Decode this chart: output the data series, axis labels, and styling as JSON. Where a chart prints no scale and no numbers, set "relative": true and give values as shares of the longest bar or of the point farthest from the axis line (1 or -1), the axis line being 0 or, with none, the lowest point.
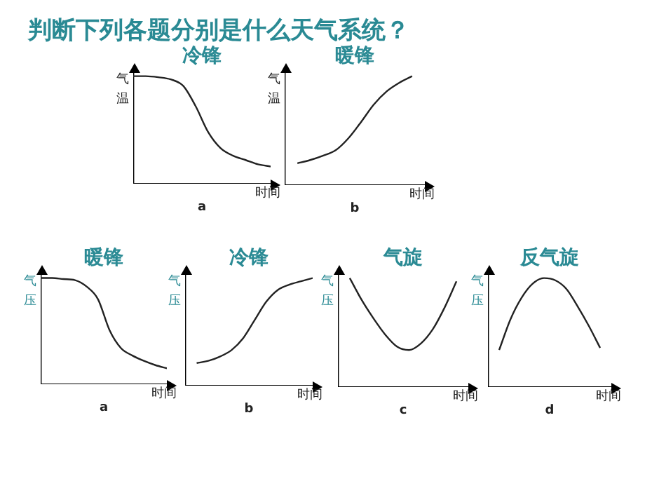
{
  "chart_data": [
    {
      "type": "other",
      "title": "判断下列各题分别是什么天气系统？"
    },
    {
      "type": "line",
      "title": "冷锋",
      "xlabel": "时间",
      "ylabel": "气温",
      "annotations": [
        "a"
      ],
      "relative": true,
      "marker": "none",
      "categories": [
        null,
        null,
        null,
        null,
        null,
        null,
        null,
        null,
        null,
        null,
        null,
        null
      ],
      "values": [
        1,
        1,
        0.99,
        0.97,
        0.91,
        0.72,
        0.48,
        0.33,
        0.26,
        0.22,
        0.18,
        0.16
      ],
      "color": "#222222"
    },
    {
      "type": "line",
      "title": "暖锋",
      "xlabel": "时间",
      "ylabel": "气温",
      "annotations": [
        "b"
      ],
      "relative": true,
      "marker": "none",
      "categories": [
        null,
        null,
        null,
        null,
        null,
        null,
        null,
        null,
        null,
        null,
        null,
        null
      ],
      "values": [
        null,
        0.2,
        0.23,
        0.27,
        0.32,
        0.43,
        0.58,
        0.74,
        0.86,
        0.94,
        1,
        null
      ],
      "color": "#222222"
    },
    {
      "type": "line",
      "title": "暖锋",
      "xlabel": "时间",
      "ylabel": "气压",
      "annotations": [
        "a"
      ],
      "relative": true,
      "marker": "none",
      "categories": [
        null,
        null,
        null,
        null,
        null,
        null,
        null,
        null,
        null,
        null,
        null,
        null
      ],
      "values": [
        1,
        1,
        0.99,
        0.98,
        0.92,
        0.8,
        0.51,
        0.34,
        0.27,
        0.22,
        0.18,
        0.15
      ],
      "color": "#222222"
    },
    {
      "type": "line",
      "title": "冷锋",
      "xlabel": "时间",
      "ylabel": "气压",
      "annotations": [
        "b"
      ],
      "relative": true,
      "marker": "none",
      "categories": [
        null,
        null,
        null,
        null,
        null,
        null,
        null,
        null,
        null,
        null,
        null,
        null
      ],
      "values": [
        null,
        0.21,
        0.23,
        0.27,
        0.33,
        0.44,
        0.61,
        0.78,
        0.89,
        0.94,
        0.97,
        1
      ],
      "color": "#222222"
    },
    {
      "type": "line",
      "title": "气旋",
      "xlabel": "时间",
      "ylabel": "气压",
      "annotations": [
        "c"
      ],
      "relative": true,
      "marker": "none",
      "categories": [
        null,
        null,
        null,
        null,
        null,
        null,
        null,
        null,
        null,
        null,
        null,
        null
      ],
      "values": [
        null,
        1,
        0.8,
        0.63,
        0.48,
        0.37,
        0.34,
        0.4,
        0.53,
        0.73,
        0.97,
        null
      ],
      "color": "#222222"
    },
    {
      "type": "line",
      "title": "反气旋",
      "xlabel": "时间",
      "ylabel": "气压",
      "annotations": [
        "d"
      ],
      "relative": true,
      "marker": "none",
      "categories": [
        null,
        null,
        null,
        null,
        null,
        null,
        null,
        null,
        null,
        null,
        null,
        null
      ],
      "values": [
        null,
        0.34,
        0.62,
        0.82,
        0.95,
        1,
        0.98,
        0.9,
        0.74,
        0.56,
        0.36,
        null
      ],
      "color": "#222222"
    }
  ]
}
